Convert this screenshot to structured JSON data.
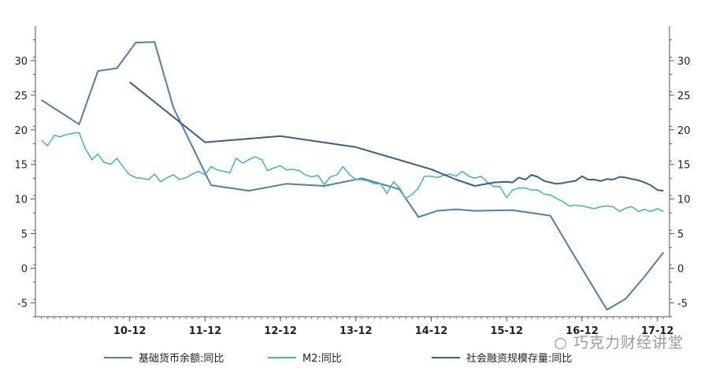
{
  "chart_data": {
    "type": "line",
    "title": "",
    "xlabel": "",
    "ylabel": "",
    "ylim": [
      -7,
      35
    ],
    "y_ticks": [
      30,
      25,
      20,
      15,
      10,
      5,
      0,
      -5
    ],
    "y_tick_labels": [
      "30",
      "25",
      "20",
      "15",
      "10",
      "5",
      "0",
      "-5"
    ],
    "x_range": [
      2009.67,
      2018.08
    ],
    "x_ticks": [
      2010.92,
      2011.92,
      2012.92,
      2013.92,
      2014.92,
      2015.92,
      2016.92,
      2017.92
    ],
    "x_tick_labels": [
      "10-12",
      "11-12",
      "12-12",
      "13-12",
      "14-12",
      "15-12",
      "16-12",
      "17-12"
    ],
    "grid": false,
    "legend_position": "bottom",
    "series": [
      {
        "name": "基础货币余额:同比",
        "color": "#4e7fb2",
        "x": [
          2009.75,
          2010.25,
          2010.5,
          2010.75,
          2011.0,
          2011.25,
          2011.5,
          2012.0,
          2012.5,
          2013.0,
          2013.5,
          2014.0,
          2014.5,
          2014.75,
          2015.0,
          2015.25,
          2015.5,
          2016.0,
          2016.5,
          2016.75,
          2017.0,
          2017.25,
          2017.5,
          2017.75,
          2018.0
        ],
        "y": [
          24.3,
          20.8,
          28.5,
          28.9,
          32.6,
          32.7,
          23.2,
          12.0,
          11.2,
          12.2,
          11.9,
          13.0,
          11.4,
          7.4,
          8.3,
          8.5,
          8.3,
          8.4,
          7.6,
          3.0,
          -1.5,
          -6.0,
          -4.4,
          -1.2,
          2.3
        ]
      },
      {
        "name": "M2:同比",
        "color": "#4ab5c4",
        "x": [
          2009.75,
          2009.83,
          2009.92,
          2010.0,
          2010.08,
          2010.17,
          2010.25,
          2010.33,
          2010.42,
          2010.5,
          2010.58,
          2010.67,
          2010.75,
          2010.83,
          2010.92,
          2011.0,
          2011.08,
          2011.17,
          2011.25,
          2011.33,
          2011.42,
          2011.5,
          2011.58,
          2011.67,
          2011.75,
          2011.83,
          2011.92,
          2012.0,
          2012.08,
          2012.17,
          2012.25,
          2012.33,
          2012.42,
          2012.5,
          2012.58,
          2012.67,
          2012.75,
          2012.83,
          2012.92,
          2013.0,
          2013.08,
          2013.17,
          2013.25,
          2013.33,
          2013.42,
          2013.5,
          2013.58,
          2013.67,
          2013.75,
          2013.83,
          2013.92,
          2014.0,
          2014.08,
          2014.17,
          2014.25,
          2014.33,
          2014.42,
          2014.5,
          2014.58,
          2014.67,
          2014.75,
          2014.83,
          2014.92,
          2015.0,
          2015.08,
          2015.17,
          2015.25,
          2015.33,
          2015.42,
          2015.5,
          2015.58,
          2015.67,
          2015.75,
          2015.83,
          2015.92,
          2016.0,
          2016.08,
          2016.17,
          2016.25,
          2016.33,
          2016.42,
          2016.5,
          2016.58,
          2016.67,
          2016.75,
          2016.83,
          2016.92,
          2017.0,
          2017.08,
          2017.17,
          2017.25,
          2017.33,
          2017.42,
          2017.5,
          2017.58,
          2017.67,
          2017.75,
          2017.83,
          2017.92,
          2018.0
        ],
        "y": [
          18.5,
          17.7,
          19.2,
          19.0,
          19.3,
          19.5,
          19.6,
          17.3,
          15.7,
          16.5,
          15.3,
          15.0,
          15.9,
          14.7,
          13.5,
          13.1,
          13.0,
          12.8,
          13.6,
          12.5,
          13.1,
          13.5,
          12.8,
          13.1,
          13.6,
          14.0,
          13.5,
          14.7,
          14.2,
          14.0,
          13.8,
          15.9,
          15.2,
          15.7,
          16.1,
          15.7,
          14.1,
          14.5,
          14.8,
          14.2,
          14.3,
          14.1,
          13.5,
          13.2,
          13.4,
          12.1,
          13.2,
          13.5,
          14.7,
          13.6,
          12.8,
          12.8,
          12.6,
          12.2,
          12.2,
          10.8,
          12.5,
          11.6,
          10.1,
          10.7,
          11.6,
          13.3,
          13.3,
          13.1,
          13.4,
          13.6,
          13.3,
          14.0,
          13.3,
          13.0,
          13.3,
          12.4,
          11.8,
          11.8,
          10.2,
          11.3,
          11.6,
          11.6,
          11.3,
          11.3,
          10.7,
          10.6,
          10.1,
          9.6,
          9.0,
          9.1,
          9.0,
          8.8,
          8.6,
          8.9,
          9.0,
          8.9,
          8.2,
          8.7,
          8.9,
          8.2,
          8.5,
          8.2,
          8.6,
          8.2
        ]
      },
      {
        "name": "社会融资规模存量:同比",
        "color": "#3a5f8c",
        "x": [
          2010.92,
          2011.92,
          2012.92,
          2013.92,
          2014.92,
          2015.25,
          2015.5,
          2015.75,
          2015.92,
          2016.0,
          2016.08,
          2016.17,
          2016.25,
          2016.33,
          2016.42,
          2016.5,
          2016.58,
          2016.67,
          2016.75,
          2016.83,
          2016.92,
          2017.0,
          2017.08,
          2017.17,
          2017.25,
          2017.33,
          2017.42,
          2017.5,
          2017.58,
          2017.67,
          2017.75,
          2017.83,
          2017.92,
          2018.0
        ],
        "y": [
          26.9,
          18.2,
          19.1,
          17.5,
          14.3,
          12.8,
          11.9,
          12.4,
          12.5,
          12.4,
          13.1,
          12.8,
          13.5,
          13.2,
          12.6,
          12.4,
          12.2,
          12.3,
          12.5,
          12.6,
          13.3,
          12.8,
          12.8,
          12.6,
          12.9,
          12.8,
          13.2,
          13.1,
          12.9,
          12.7,
          12.4,
          12.0,
          11.3,
          11.2
        ]
      }
    ]
  },
  "watermark": "巧克力财经讲堂"
}
